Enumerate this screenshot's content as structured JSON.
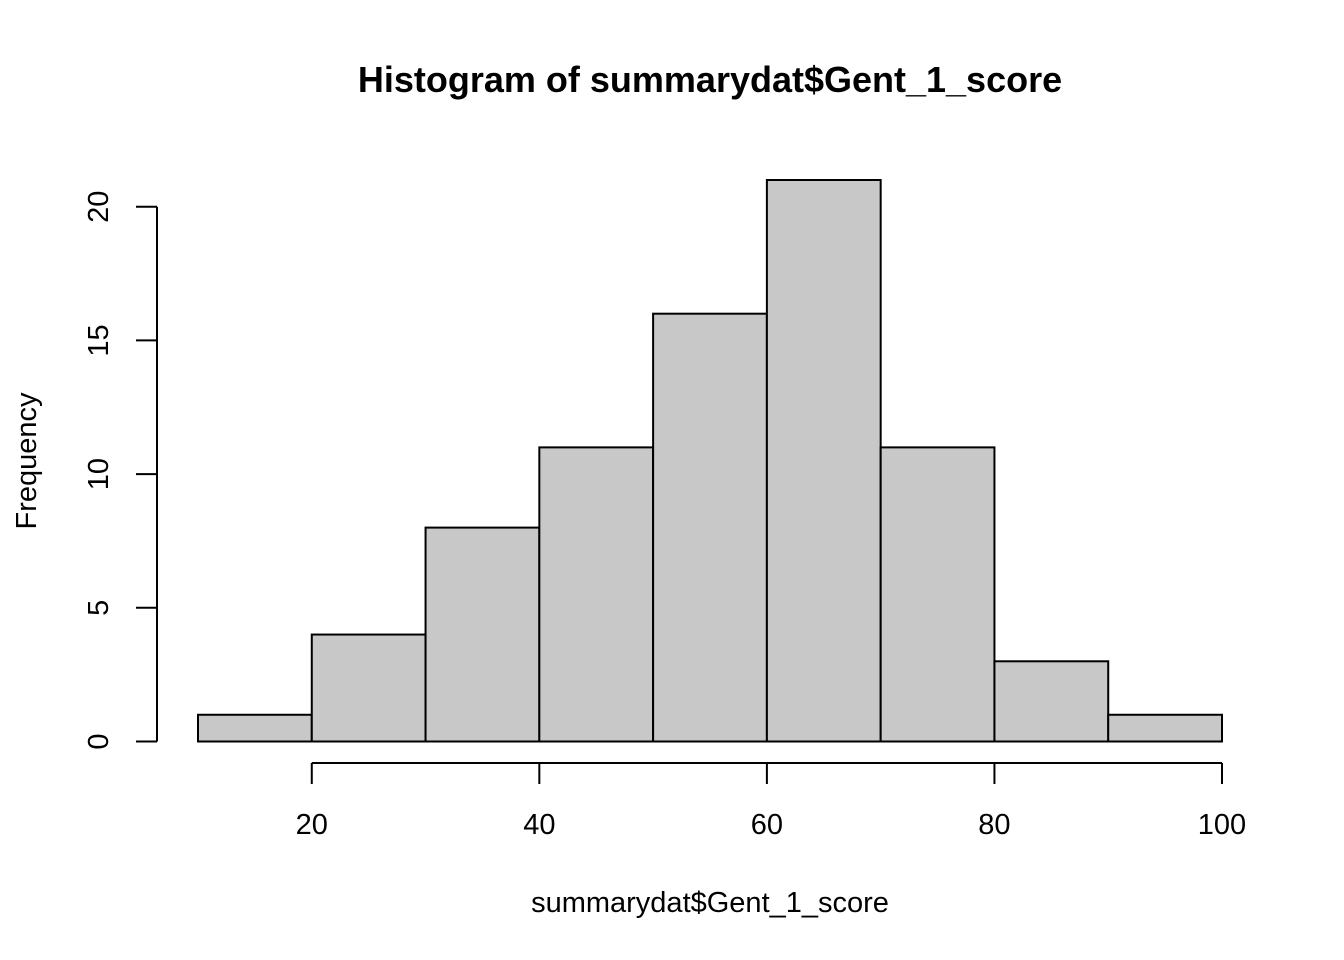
{
  "chart_data": {
    "type": "bar",
    "title": "Histogram of summarydat$Gent_1_score",
    "xlabel": "summarydat$Gent_1_score",
    "ylabel": "Frequency",
    "bins": [
      {
        "from": 10,
        "to": 20,
        "count": 1
      },
      {
        "from": 20,
        "to": 30,
        "count": 4
      },
      {
        "from": 30,
        "to": 40,
        "count": 8
      },
      {
        "from": 40,
        "to": 50,
        "count": 11
      },
      {
        "from": 50,
        "to": 60,
        "count": 16
      },
      {
        "from": 60,
        "to": 70,
        "count": 21
      },
      {
        "from": 70,
        "to": 80,
        "count": 11
      },
      {
        "from": 80,
        "to": 90,
        "count": 3
      },
      {
        "from": 90,
        "to": 100,
        "count": 1
      }
    ],
    "xticks": [
      "20",
      "40",
      "60",
      "80",
      "100"
    ],
    "yticks": [
      "0",
      "5",
      "10",
      "15",
      "20"
    ],
    "xlim": [
      10,
      100
    ],
    "ylim": [
      0,
      21
    ],
    "grid": false
  }
}
